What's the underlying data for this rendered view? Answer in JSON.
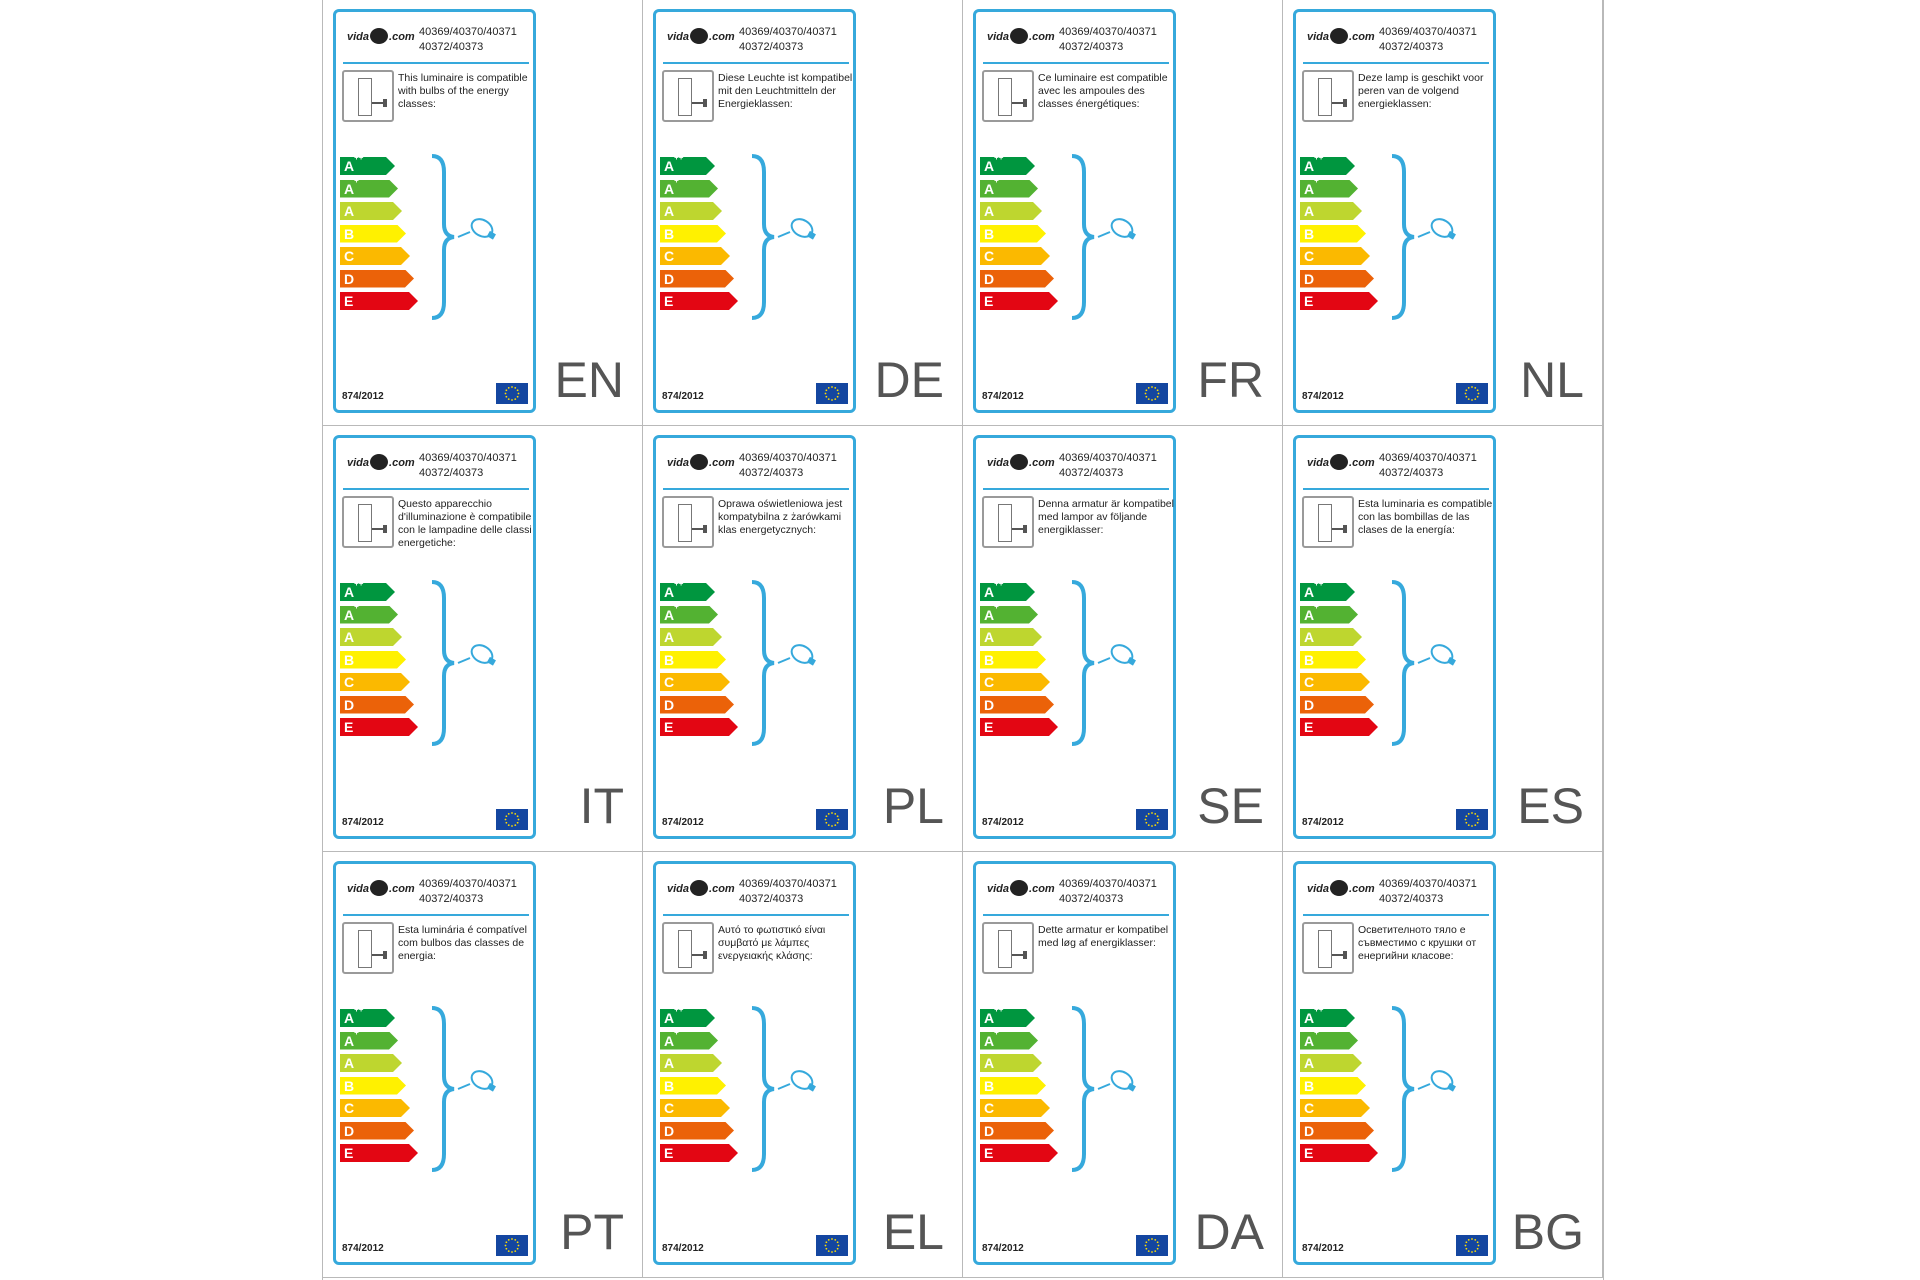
{
  "common": {
    "logo_left": "vida",
    "logo_right": ".com",
    "model_line1": "40369/40370/40371",
    "model_line2": "40372/40373",
    "regulation": "874/2012",
    "energy_classes": [
      "A++",
      "A+",
      "A",
      "B",
      "C",
      "D",
      "E"
    ],
    "class_colors": [
      "#00963f",
      "#53b232",
      "#bed62f",
      "#fff100",
      "#fbb900",
      "#eb6209",
      "#e30613"
    ]
  },
  "labels": [
    {
      "lang": "EN",
      "text": "This luminaire is compatible with bulbs of the energy classes:"
    },
    {
      "lang": "DE",
      "text": "Diese Leuchte ist kompatibel mit den Leuchtmitteln der Energieklassen:"
    },
    {
      "lang": "FR",
      "text": "Ce luminaire est compatible avec les ampoules des classes énergétiques:"
    },
    {
      "lang": "NL",
      "text": "Deze lamp is geschikt voor peren van de volgend energieklassen:"
    },
    {
      "lang": "IT",
      "text": "Questo apparecchio d'illuminazione è compatibile con le lampadine delle classi energetiche:"
    },
    {
      "lang": "PL",
      "text": "Oprawa oświetleniowa jest kompatybilna z żarówkami klas energetycznych:"
    },
    {
      "lang": "SE",
      "text": "Denna armatur är kompatibel med lampor av följande energiklasser:"
    },
    {
      "lang": "ES",
      "text": "Esta luminaria es compatible con las bombillas de las clases de la energía:"
    },
    {
      "lang": "PT",
      "text": "Esta luminária é compatível com bulbos das classes de energia:"
    },
    {
      "lang": "EL",
      "text": "Αυτό το φωτιστικό είναι συμβατό με λάμπες ενεργειακής κλάσης:"
    },
    {
      "lang": "DA",
      "text": "Dette armatur er kompatibel med løg af energiklasser:"
    },
    {
      "lang": "BG",
      "text": "Осветителното тяло е съвместимо с крушки от енергийни класове:"
    }
  ]
}
